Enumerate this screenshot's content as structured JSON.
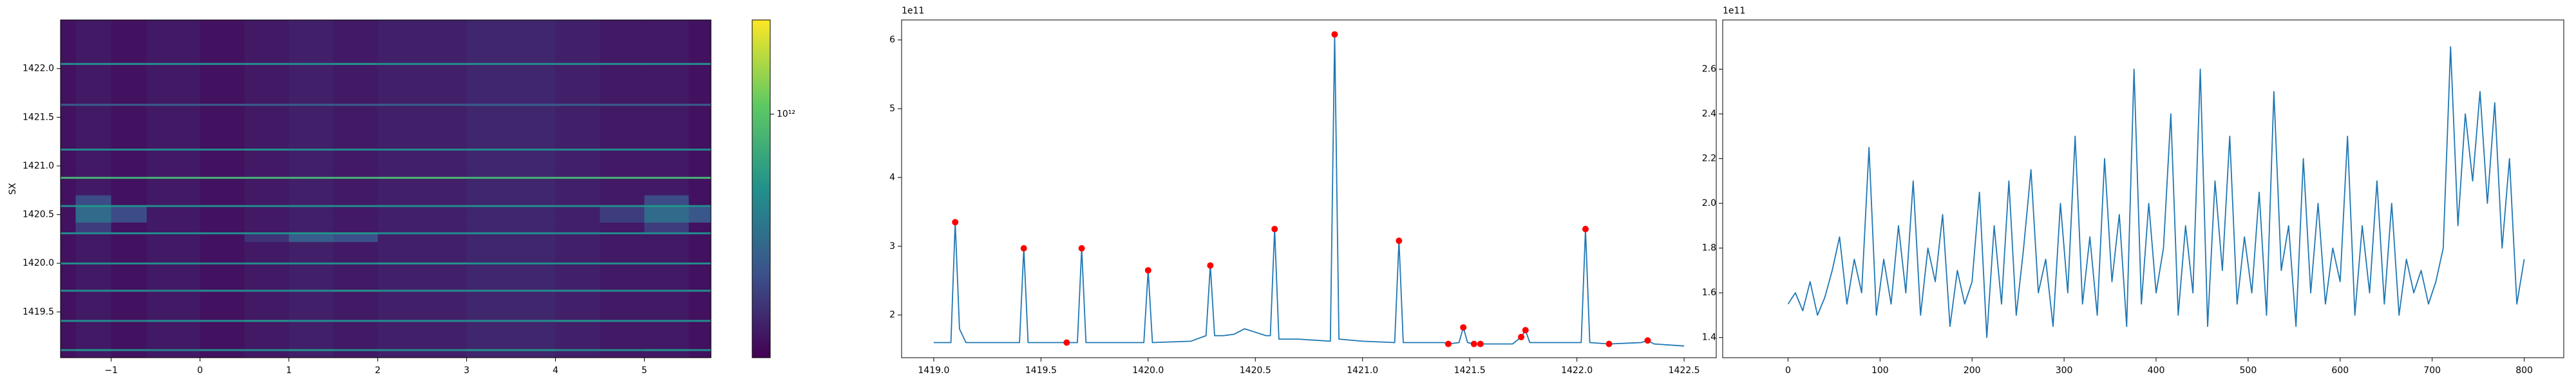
{
  "chart_data": [
    {
      "type": "heatmap",
      "ylabel": "SX",
      "colormap": "viridis",
      "color_scale": "log",
      "xlim": [
        -1.57,
        5.75
      ],
      "ylim": [
        1419.03,
        1422.5
      ],
      "xticks": [
        {
          "value": -1,
          "label": "−1"
        },
        0,
        1,
        2,
        3,
        4,
        5
      ],
      "yticks": [
        1419.5,
        {
          "value": 1420,
          "label": "1420.0"
        },
        1420.5,
        {
          "value": 1421,
          "label": "1421.0"
        },
        1421.5,
        {
          "value": 1422,
          "label": "1422.0"
        }
      ],
      "xedges": [
        -1.57,
        -1.4,
        -1.0,
        -0.6,
        0,
        0.5,
        1.0,
        1.5,
        2.0,
        3.0,
        4.0,
        4.5,
        5.0,
        5.5,
        5.75
      ],
      "yedges": [
        1419.03,
        1419.1,
        1419.12,
        1419.4,
        1419.42,
        1419.71,
        1419.73,
        1419.99,
        1420.01,
        1420.22,
        1420.3,
        1420.32,
        1420.42,
        1420.58,
        1420.6,
        1420.7,
        1420.87,
        1420.89,
        1421.16,
        1421.18,
        1421.62,
        1421.64,
        1422.04,
        1422.06,
        1422.5
      ],
      "z": [
        [
          150000000000.0,
          160000000000.0,
          150000000000.0,
          160000000000.0,
          150000000000.0,
          160000000000.0,
          170000000000.0,
          160000000000.0,
          170000000000.0,
          180000000000.0,
          170000000000.0,
          160000000000.0,
          160000000000.0,
          150000000000.0
        ],
        [
          500000000000.0,
          550000000000.0,
          500000000000.0,
          450000000000.0,
          500000000000.0,
          500000000000.0,
          550000000000.0,
          500000000000.0,
          500000000000.0,
          550000000000.0,
          500000000000.0,
          500000000000.0,
          550000000000.0,
          500000000000.0
        ],
        [
          150000000000.0,
          160000000000.0,
          150000000000.0,
          160000000000.0,
          150000000000.0,
          160000000000.0,
          170000000000.0,
          160000000000.0,
          170000000000.0,
          180000000000.0,
          170000000000.0,
          160000000000.0,
          160000000000.0,
          150000000000.0
        ],
        [
          500000000000.0,
          500000000000.0,
          450000000000.0,
          500000000000.0,
          500000000000.0,
          550000000000.0,
          500000000000.0,
          500000000000.0,
          500000000000.0,
          500000000000.0,
          550000000000.0,
          500000000000.0,
          500000000000.0,
          500000000000.0
        ],
        [
          150000000000.0,
          160000000000.0,
          150000000000.0,
          160000000000.0,
          150000000000.0,
          160000000000.0,
          170000000000.0,
          160000000000.0,
          170000000000.0,
          180000000000.0,
          170000000000.0,
          160000000000.0,
          160000000000.0,
          150000000000.0
        ],
        [
          500000000000.0,
          500000000000.0,
          500000000000.0,
          450000000000.0,
          500000000000.0,
          500000000000.0,
          500000000000.0,
          550000000000.0,
          500000000000.0,
          500000000000.0,
          500000000000.0,
          500000000000.0,
          500000000000.0,
          500000000000.0
        ],
        [
          150000000000.0,
          160000000000.0,
          150000000000.0,
          160000000000.0,
          150000000000.0,
          160000000000.0,
          170000000000.0,
          160000000000.0,
          170000000000.0,
          180000000000.0,
          170000000000.0,
          160000000000.0,
          160000000000.0,
          150000000000.0
        ],
        [
          500000000000.0,
          500000000000.0,
          500000000000.0,
          500000000000.0,
          450000000000.0,
          500000000000.0,
          500000000000.0,
          500000000000.0,
          550000000000.0,
          500000000000.0,
          500000000000.0,
          500000000000.0,
          500000000000.0,
          500000000000.0
        ],
        [
          150000000000.0,
          160000000000.0,
          150000000000.0,
          160000000000.0,
          150000000000.0,
          160000000000.0,
          170000000000.0,
          160000000000.0,
          170000000000.0,
          180000000000.0,
          170000000000.0,
          160000000000.0,
          160000000000.0,
          150000000000.0
        ],
        [
          150000000000.0,
          160000000000.0,
          150000000000.0,
          160000000000.0,
          150000000000.0,
          200000000000.0,
          300000000000.0,
          260000000000.0,
          170000000000.0,
          180000000000.0,
          170000000000.0,
          160000000000.0,
          160000000000.0,
          150000000000.0
        ],
        [
          500000000000.0,
          500000000000.0,
          500000000000.0,
          500000000000.0,
          500000000000.0,
          500000000000.0,
          550000000000.0,
          550000000000.0,
          500000000000.0,
          500000000000.0,
          500000000000.0,
          500000000000.0,
          500000000000.0,
          500000000000.0
        ],
        [
          150000000000.0,
          220000000000.0,
          150000000000.0,
          160000000000.0,
          150000000000.0,
          160000000000.0,
          170000000000.0,
          160000000000.0,
          170000000000.0,
          180000000000.0,
          170000000000.0,
          160000000000.0,
          220000000000.0,
          150000000000.0
        ],
        [
          150000000000.0,
          350000000000.0,
          250000000000.0,
          160000000000.0,
          150000000000.0,
          160000000000.0,
          170000000000.0,
          160000000000.0,
          170000000000.0,
          180000000000.0,
          170000000000.0,
          220000000000.0,
          350000000000.0,
          280000000000.0
        ],
        [
          500000000000.0,
          550000000000.0,
          500000000000.0,
          500000000000.0,
          500000000000.0,
          500000000000.0,
          500000000000.0,
          500000000000.0,
          500000000000.0,
          500000000000.0,
          500000000000.0,
          500000000000.0,
          550000000000.0,
          500000000000.0
        ],
        [
          150000000000.0,
          250000000000.0,
          150000000000.0,
          160000000000.0,
          150000000000.0,
          160000000000.0,
          170000000000.0,
          160000000000.0,
          170000000000.0,
          180000000000.0,
          170000000000.0,
          160000000000.0,
          250000000000.0,
          150000000000.0
        ],
        [
          150000000000.0,
          160000000000.0,
          150000000000.0,
          160000000000.0,
          150000000000.0,
          160000000000.0,
          170000000000.0,
          160000000000.0,
          170000000000.0,
          180000000000.0,
          170000000000.0,
          160000000000.0,
          160000000000.0,
          150000000000.0
        ],
        [
          800000000000.0,
          800000000000.0,
          750000000000.0,
          800000000000.0,
          800000000000.0,
          800000000000.0,
          800000000000.0,
          800000000000.0,
          850000000000.0,
          800000000000.0,
          800000000000.0,
          800000000000.0,
          800000000000.0,
          800000000000.0
        ],
        [
          150000000000.0,
          160000000000.0,
          150000000000.0,
          160000000000.0,
          150000000000.0,
          160000000000.0,
          170000000000.0,
          160000000000.0,
          170000000000.0,
          180000000000.0,
          170000000000.0,
          160000000000.0,
          160000000000.0,
          150000000000.0
        ],
        [
          500000000000.0,
          500000000000.0,
          500000000000.0,
          500000000000.0,
          500000000000.0,
          550000000000.0,
          500000000000.0,
          500000000000.0,
          500000000000.0,
          500000000000.0,
          500000000000.0,
          500000000000.0,
          500000000000.0,
          500000000000.0
        ],
        [
          150000000000.0,
          160000000000.0,
          150000000000.0,
          160000000000.0,
          150000000000.0,
          160000000000.0,
          170000000000.0,
          160000000000.0,
          170000000000.0,
          180000000000.0,
          170000000000.0,
          160000000000.0,
          160000000000.0,
          150000000000.0
        ],
        [
          300000000000.0,
          300000000000.0,
          300000000000.0,
          300000000000.0,
          300000000000.0,
          300000000000.0,
          300000000000.0,
          300000000000.0,
          300000000000.0,
          300000000000.0,
          300000000000.0,
          300000000000.0,
          300000000000.0,
          300000000000.0
        ],
        [
          150000000000.0,
          160000000000.0,
          150000000000.0,
          160000000000.0,
          150000000000.0,
          160000000000.0,
          170000000000.0,
          160000000000.0,
          170000000000.0,
          180000000000.0,
          170000000000.0,
          160000000000.0,
          160000000000.0,
          150000000000.0
        ],
        [
          500000000000.0,
          500000000000.0,
          500000000000.0,
          500000000000.0,
          500000000000.0,
          500000000000.0,
          500000000000.0,
          550000000000.0,
          500000000000.0,
          500000000000.0,
          500000000000.0,
          500000000000.0,
          500000000000.0,
          500000000000.0
        ],
        [
          150000000000.0,
          160000000000.0,
          150000000000.0,
          160000000000.0,
          150000000000.0,
          160000000000.0,
          170000000000.0,
          160000000000.0,
          170000000000.0,
          180000000000.0,
          170000000000.0,
          160000000000.0,
          160000000000.0,
          150000000000.0
        ]
      ],
      "clim": [
        130000000000.0,
        2200000000000.0
      ],
      "colorbar_ticks": [
        {
          "value": 1000000000000.0,
          "label": "10¹²"
        }
      ]
    },
    {
      "type": "line",
      "y_offset_label": "1e11",
      "xlim": [
        1418.85,
        1422.65
      ],
      "ylim": [
        1.38,
        6.29
      ],
      "xticks": [
        {
          "value": 1419,
          "label": "1419.0"
        },
        1419.5,
        {
          "value": 1420,
          "label": "1420.0"
        },
        1420.5,
        {
          "value": 1421,
          "label": "1421.0"
        },
        1421.5,
        {
          "value": 1422,
          "label": "1422.0"
        },
        1422.5
      ],
      "yticks": [
        2,
        3,
        4,
        5,
        6
      ],
      "series": [
        {
          "color": "#1f77b4",
          "x": [
            1419.0,
            1419.08,
            1419.1,
            1419.12,
            1419.15,
            1419.4,
            1419.42,
            1419.44,
            1419.62,
            1419.67,
            1419.69,
            1419.71,
            1419.98,
            1420.0,
            1420.02,
            1420.2,
            1420.27,
            1420.29,
            1420.31,
            1420.35,
            1420.4,
            1420.45,
            1420.5,
            1420.55,
            1420.57,
            1420.59,
            1420.61,
            1420.7,
            1420.85,
            1420.87,
            1420.89,
            1421.0,
            1421.15,
            1421.17,
            1421.19,
            1421.38,
            1421.4,
            1421.45,
            1421.47,
            1421.49,
            1421.52,
            1421.55,
            1421.7,
            1421.74,
            1421.76,
            1421.78,
            1422.0,
            1422.02,
            1422.04,
            1422.06,
            1422.15,
            1422.3,
            1422.33,
            1422.36,
            1422.5
          ],
          "values": [
            1.6,
            1.6,
            3.35,
            1.8,
            1.6,
            1.6,
            2.97,
            1.6,
            1.6,
            1.6,
            2.97,
            1.6,
            1.6,
            2.65,
            1.6,
            1.62,
            1.7,
            2.72,
            1.7,
            1.7,
            1.72,
            1.8,
            1.75,
            1.7,
            1.7,
            3.25,
            1.65,
            1.65,
            1.62,
            6.08,
            1.65,
            1.62,
            1.6,
            3.08,
            1.6,
            1.6,
            1.58,
            1.6,
            1.82,
            1.6,
            1.58,
            1.58,
            1.58,
            1.68,
            1.78,
            1.6,
            1.6,
            1.6,
            3.25,
            1.6,
            1.58,
            1.6,
            1.63,
            1.58,
            1.55
          ]
        }
      ],
      "markers": {
        "color": "#ff0000",
        "x": [
          1419.1,
          1419.42,
          1419.62,
          1419.69,
          1420.0,
          1420.29,
          1420.59,
          1420.87,
          1421.17,
          1421.4,
          1421.47,
          1421.52,
          1421.55,
          1421.74,
          1421.76,
          1422.04,
          1422.15,
          1422.33
        ],
        "values": [
          3.35,
          2.97,
          1.6,
          2.97,
          2.65,
          2.72,
          3.25,
          6.08,
          3.08,
          1.58,
          1.82,
          1.58,
          1.58,
          1.68,
          1.78,
          3.25,
          1.58,
          1.63
        ]
      }
    },
    {
      "type": "line",
      "y_offset_label": "1e11",
      "xlim": [
        -71,
        843
      ],
      "ylim": [
        1.31,
        2.82
      ],
      "xticks": [
        0,
        100,
        200,
        300,
        400,
        500,
        600,
        700,
        800
      ],
      "yticks": [
        1.4,
        1.6,
        1.8,
        {
          "value": 2,
          "label": "2.0"
        },
        2.2,
        2.4,
        2.6
      ],
      "series": [
        {
          "color": "#1f77b4",
          "x": [
            0,
            8,
            16,
            24,
            32,
            40,
            48,
            56,
            64,
            72,
            80,
            88,
            96,
            104,
            112,
            120,
            128,
            136,
            144,
            152,
            160,
            168,
            176,
            184,
            192,
            200,
            208,
            216,
            224,
            232,
            240,
            248,
            256,
            264,
            272,
            280,
            288,
            296,
            304,
            312,
            320,
            328,
            336,
            344,
            352,
            360,
            368,
            376,
            384,
            392,
            400,
            408,
            416,
            424,
            432,
            440,
            448,
            456,
            464,
            472,
            480,
            488,
            496,
            504,
            512,
            520,
            528,
            536,
            544,
            552,
            560,
            568,
            576,
            584,
            592,
            600,
            608,
            616,
            624,
            632,
            640,
            648,
            656,
            664,
            672,
            680,
            688,
            696,
            704,
            712,
            720,
            728,
            736,
            744,
            752,
            760,
            768,
            776,
            784,
            792,
            800
          ],
          "values": [
            1.55,
            1.6,
            1.52,
            1.65,
            1.5,
            1.58,
            1.7,
            1.85,
            1.55,
            1.75,
            1.6,
            2.25,
            1.5,
            1.75,
            1.55,
            1.9,
            1.6,
            2.1,
            1.5,
            1.8,
            1.65,
            1.95,
            1.45,
            1.7,
            1.55,
            1.65,
            2.05,
            1.4,
            1.9,
            1.55,
            2.1,
            1.5,
            1.8,
            2.15,
            1.6,
            1.75,
            1.45,
            2.0,
            1.6,
            2.3,
            1.55,
            1.85,
            1.5,
            2.2,
            1.65,
            1.95,
            1.45,
            2.6,
            1.55,
            2.0,
            1.6,
            1.8,
            2.4,
            1.5,
            1.9,
            1.6,
            2.6,
            1.45,
            2.1,
            1.7,
            2.3,
            1.55,
            1.85,
            1.6,
            2.05,
            1.5,
            2.5,
            1.7,
            1.9,
            1.45,
            2.2,
            1.6,
            2.0,
            1.55,
            1.8,
            1.65,
            2.3,
            1.5,
            1.9,
            1.6,
            2.1,
            1.55,
            2.0,
            1.5,
            1.75,
            1.6,
            1.7,
            1.55,
            1.65,
            1.8,
            2.7,
            1.9,
            2.4,
            2.1,
            2.5,
            2.0,
            2.45,
            1.8,
            2.2,
            1.55,
            1.75
          ]
        }
      ]
    }
  ]
}
